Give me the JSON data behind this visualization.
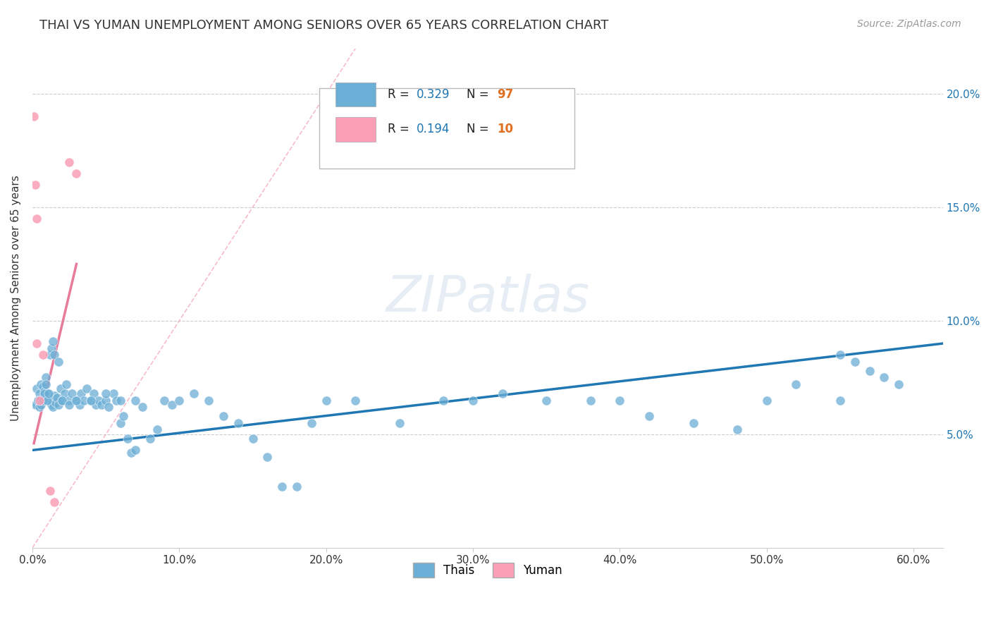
{
  "title": "THAI VS YUMAN UNEMPLOYMENT AMONG SENIORS OVER 65 YEARS CORRELATION CHART",
  "source": "Source: ZipAtlas.com",
  "ylabel_label": "Unemployment Among Seniors over 65 years",
  "thai_color": "#6baed6",
  "yuman_color": "#fa9fb5",
  "thai_line_color": "#1f77b4",
  "yuman_line_color": "#e87a9a",
  "diag_line_color": "#f4a0b0",
  "watermark": "ZIPatlas",
  "thai_scatter_x": [
    0.002,
    0.003,
    0.004,
    0.005,
    0.006,
    0.007,
    0.008,
    0.009,
    0.01,
    0.012,
    0.013,
    0.014,
    0.015,
    0.016,
    0.017,
    0.018,
    0.019,
    0.02,
    0.022,
    0.023,
    0.025,
    0.027,
    0.03,
    0.032,
    0.033,
    0.035,
    0.037,
    0.04,
    0.042,
    0.043,
    0.045,
    0.047,
    0.05,
    0.052,
    0.055,
    0.057,
    0.06,
    0.062,
    0.065,
    0.067,
    0.07,
    0.075,
    0.08,
    0.085,
    0.09,
    0.095,
    0.1,
    0.11,
    0.12,
    0.13,
    0.14,
    0.15,
    0.16,
    0.17,
    0.18,
    0.19,
    0.2,
    0.22,
    0.25,
    0.28,
    0.3,
    0.32,
    0.35,
    0.38,
    0.4,
    0.42,
    0.45,
    0.48,
    0.5,
    0.52,
    0.55,
    0.003,
    0.004,
    0.005,
    0.006,
    0.007,
    0.008,
    0.009,
    0.01,
    0.011,
    0.012,
    0.013,
    0.014,
    0.015,
    0.018,
    0.02,
    0.025,
    0.03,
    0.04,
    0.05,
    0.06,
    0.07,
    0.55,
    0.56,
    0.57,
    0.58,
    0.59
  ],
  "thai_scatter_y": [
    0.063,
    0.07,
    0.065,
    0.068,
    0.072,
    0.071,
    0.069,
    0.075,
    0.068,
    0.065,
    0.063,
    0.062,
    0.067,
    0.064,
    0.066,
    0.063,
    0.07,
    0.065,
    0.068,
    0.072,
    0.065,
    0.068,
    0.065,
    0.063,
    0.068,
    0.065,
    0.07,
    0.065,
    0.068,
    0.063,
    0.065,
    0.063,
    0.065,
    0.062,
    0.068,
    0.065,
    0.055,
    0.058,
    0.048,
    0.042,
    0.043,
    0.062,
    0.048,
    0.052,
    0.065,
    0.063,
    0.065,
    0.068,
    0.065,
    0.058,
    0.055,
    0.048,
    0.04,
    0.027,
    0.027,
    0.055,
    0.065,
    0.065,
    0.055,
    0.065,
    0.065,
    0.068,
    0.065,
    0.065,
    0.065,
    0.058,
    0.055,
    0.052,
    0.065,
    0.072,
    0.065,
    0.063,
    0.065,
    0.062,
    0.063,
    0.065,
    0.068,
    0.072,
    0.065,
    0.068,
    0.085,
    0.088,
    0.091,
    0.085,
    0.082,
    0.065,
    0.063,
    0.065,
    0.065,
    0.068,
    0.065,
    0.065,
    0.085,
    0.082,
    0.078,
    0.075,
    0.072
  ],
  "yuman_scatter_x": [
    0.001,
    0.002,
    0.003,
    0.003,
    0.005,
    0.007,
    0.012,
    0.015,
    0.025,
    0.03
  ],
  "yuman_scatter_y": [
    0.19,
    0.16,
    0.145,
    0.09,
    0.065,
    0.085,
    0.025,
    0.02,
    0.17,
    0.165
  ],
  "xlim": [
    0.0,
    0.62
  ],
  "ylim": [
    0.0,
    0.22
  ],
  "thai_trend_x": [
    0.0,
    0.62
  ],
  "thai_trend_y": [
    0.043,
    0.09
  ],
  "yuman_trend_x": [
    0.001,
    0.03
  ],
  "yuman_trend_y": [
    0.046,
    0.125
  ],
  "diag_trend_x": [
    0.0,
    0.22
  ],
  "diag_trend_y": [
    0.0,
    0.22
  ],
  "xtick_vals": [
    0.0,
    0.1,
    0.2,
    0.3,
    0.4,
    0.5,
    0.6
  ],
  "ytick_vals": [
    0.05,
    0.1,
    0.15,
    0.2
  ]
}
